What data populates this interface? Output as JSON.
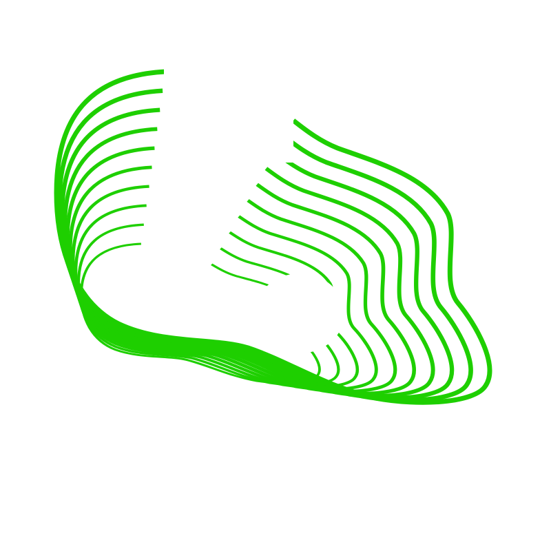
{
  "artwork": {
    "stroke_color": "#1ecf00",
    "background_color": "#ffffff",
    "loop_count": 10
  }
}
